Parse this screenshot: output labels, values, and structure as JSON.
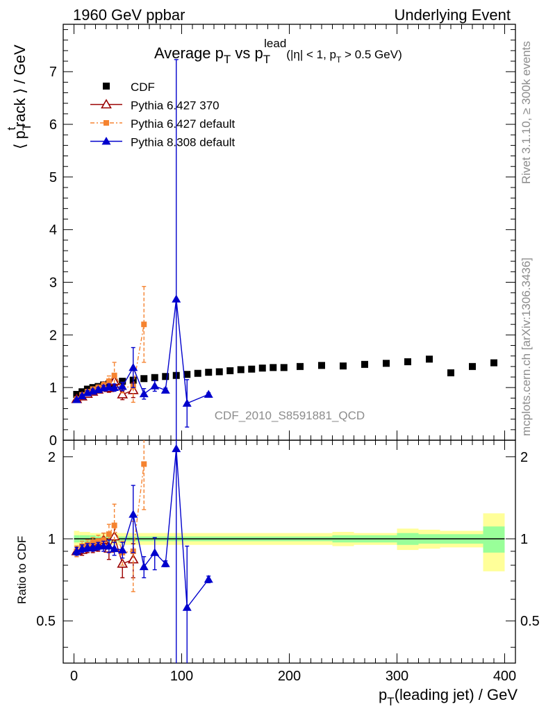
{
  "header": {
    "left": "1960 GeV ppbar",
    "right": "Underlying Event"
  },
  "side": {
    "rivet": "Rivet 3.1.10, ≥ 300k events",
    "mcplots": "mcplots.cern.ch [arXiv:1306.3436]"
  },
  "analysis_id": "CDF_2010_S8591881_QCD",
  "chart_data": [
    {
      "type": "scatter",
      "title": "Average pT vs pT lead (|η| < 1, pT > 0.5 GeV)",
      "title_parts": {
        "a": "Average p",
        "a_sub": "T",
        "b": " vs p",
        "b_sub": "T",
        "b_sup": "lead",
        "c": "(|η| < 1, p",
        "c_sub": "T",
        "d": " > 0.5 GeV)"
      },
      "ylabel": "⟨ pT track ⟩ / GeV",
      "ylabel_parts": {
        "l": "⟨ p",
        "sub": "T",
        "sup": "t",
        "r": "rack ⟩ / GeV"
      },
      "xlim": [
        -10,
        410
      ],
      "ylim": [
        0,
        7.9
      ],
      "yticks": [
        "0",
        "1",
        "2",
        "3",
        "4",
        "5",
        "6",
        "7"
      ],
      "legend_position": "top-left",
      "series": [
        {
          "name": "CDF",
          "color": "#000000",
          "marker": "square-filled",
          "x": [
            2.5,
            7.5,
            12.5,
            17.5,
            22.5,
            27.5,
            32.5,
            37.5,
            45,
            55,
            65,
            75,
            85,
            95,
            105,
            115,
            125,
            135,
            145,
            155,
            165,
            175,
            185,
            195,
            210,
            230,
            250,
            270,
            290,
            310,
            330,
            350,
            370,
            390
          ],
          "y": [
            0.87,
            0.92,
            0.97,
            1.0,
            1.02,
            1.05,
            1.07,
            1.1,
            1.12,
            1.14,
            1.17,
            1.19,
            1.21,
            1.23,
            1.25,
            1.27,
            1.29,
            1.3,
            1.32,
            1.34,
            1.35,
            1.37,
            1.38,
            1.38,
            1.4,
            1.42,
            1.41,
            1.44,
            1.46,
            1.49,
            1.54,
            1.28,
            1.4,
            1.47
          ]
        },
        {
          "name": "Pythia 6.427 370",
          "color": "#9a0000",
          "marker": "triangle-open",
          "x": [
            2.5,
            7.5,
            12.5,
            17.5,
            22.5,
            27.5,
            32.5,
            37.5,
            45,
            55
          ],
          "y": [
            0.78,
            0.83,
            0.88,
            0.92,
            0.96,
            1.02,
            0.99,
            1.12,
            0.87,
            0.95
          ],
          "err": [
            0.03,
            0.03,
            0.04,
            0.04,
            0.05,
            0.06,
            0.08,
            0.1,
            0.1,
            0.14
          ]
        },
        {
          "name": "Pythia 6.427 default",
          "color": "#f58330",
          "marker": "square-filled",
          "x": [
            2.5,
            7.5,
            12.5,
            17.5,
            22.5,
            27.5,
            32.5,
            37.5,
            45,
            55,
            65
          ],
          "y": [
            0.78,
            0.86,
            0.92,
            0.97,
            1.0,
            1.04,
            1.12,
            1.23,
            1.0,
            1.02,
            2.2
          ],
          "err": [
            0.03,
            0.03,
            0.04,
            0.04,
            0.05,
            0.06,
            0.1,
            0.25,
            0.1,
            0.3,
            0.72
          ]
        },
        {
          "name": "Pythia 8.308 default",
          "color": "#0000cc",
          "marker": "triangle-filled",
          "x": [
            2.5,
            7.5,
            12.5,
            17.5,
            22.5,
            27.5,
            32.5,
            37.5,
            45,
            55,
            65,
            75,
            85,
            95,
            105,
            125
          ],
          "y": [
            0.77,
            0.84,
            0.9,
            0.93,
            0.96,
            0.99,
            1.01,
            1.0,
            1.02,
            1.38,
            0.88,
            1.03,
            0.95,
            2.68,
            0.7,
            0.87
          ],
          "err": [
            0.03,
            0.03,
            0.04,
            0.04,
            0.04,
            0.05,
            0.06,
            0.07,
            0.08,
            0.38,
            0.1,
            0.1,
            0.04,
            4.55,
            0.45,
            0.03
          ]
        }
      ]
    },
    {
      "type": "scatter",
      "title": "",
      "ylabel": "Ratio to CDF",
      "xlabel": "pT(leading jet) / GeV",
      "xlabel_parts": {
        "a": "p",
        "sub": "T",
        "b": "(leading jet) / GeV"
      },
      "xlim": [
        -10,
        410
      ],
      "ylim": [
        0.35,
        2.3
      ],
      "xticks": [
        "0",
        "100",
        "200",
        "300",
        "400"
      ],
      "yticks": [
        "0.5",
        "1",
        "2"
      ],
      "bands": {
        "x_edges": [
          0,
          5,
          10,
          15,
          20,
          25,
          30,
          35,
          40,
          50,
          60,
          70,
          80,
          90,
          100,
          110,
          120,
          130,
          140,
          150,
          160,
          170,
          180,
          190,
          200,
          220,
          240,
          260,
          280,
          300,
          320,
          340,
          360,
          380,
          400
        ],
        "yellow_halfwidth": [
          0.07,
          0.06,
          0.06,
          0.05,
          0.05,
          0.05,
          0.05,
          0.05,
          0.05,
          0.05,
          0.05,
          0.05,
          0.05,
          0.05,
          0.05,
          0.05,
          0.05,
          0.05,
          0.05,
          0.05,
          0.05,
          0.05,
          0.05,
          0.05,
          0.05,
          0.05,
          0.06,
          0.05,
          0.05,
          0.09,
          0.08,
          0.07,
          0.07,
          0.24
        ],
        "green_halfwidth": [
          0.03,
          0.03,
          0.03,
          0.03,
          0.02,
          0.02,
          0.02,
          0.02,
          0.02,
          0.02,
          0.02,
          0.02,
          0.02,
          0.02,
          0.02,
          0.02,
          0.02,
          0.02,
          0.02,
          0.02,
          0.02,
          0.02,
          0.02,
          0.02,
          0.02,
          0.02,
          0.03,
          0.03,
          0.03,
          0.05,
          0.04,
          0.04,
          0.04,
          0.11
        ]
      },
      "series": [
        {
          "name": "Pythia 6.427 370",
          "color": "#9a0000",
          "marker": "triangle-open",
          "x": [
            2.5,
            7.5,
            12.5,
            17.5,
            22.5,
            27.5,
            32.5,
            37.5,
            45,
            55
          ],
          "y": [
            0.9,
            0.91,
            0.93,
            0.93,
            0.95,
            0.99,
            0.92,
            1.02,
            0.81,
            0.84
          ],
          "err": [
            0.04,
            0.04,
            0.04,
            0.04,
            0.05,
            0.06,
            0.08,
            0.1,
            0.09,
            0.12
          ]
        },
        {
          "name": "Pythia 6.427 default",
          "color": "#f58330",
          "marker": "square-filled",
          "x": [
            2.5,
            7.5,
            12.5,
            17.5,
            22.5,
            27.5,
            32.5,
            37.5,
            45,
            55,
            65
          ],
          "y": [
            0.9,
            0.94,
            0.95,
            0.97,
            0.98,
            0.99,
            1.04,
            1.12,
            0.89,
            0.9,
            1.88
          ],
          "err": [
            0.04,
            0.04,
            0.04,
            0.04,
            0.05,
            0.06,
            0.09,
            0.22,
            0.09,
            0.26,
            0.6
          ]
        },
        {
          "name": "Pythia 8.308 default",
          "color": "#0000cc",
          "marker": "triangle-filled",
          "x": [
            2.5,
            7.5,
            12.5,
            17.5,
            22.5,
            27.5,
            32.5,
            37.5,
            45,
            55,
            65,
            75,
            85,
            95,
            105,
            125
          ],
          "y": [
            0.9,
            0.92,
            0.93,
            0.93,
            0.94,
            0.94,
            0.94,
            0.92,
            0.91,
            1.23,
            0.79,
            0.89,
            0.81,
            2.14,
            0.56,
            0.71
          ],
          "err": [
            0.03,
            0.03,
            0.03,
            0.03,
            0.03,
            0.04,
            0.05,
            0.05,
            0.06,
            0.34,
            0.07,
            0.12,
            0.02,
            2.2,
            0.38,
            0.02
          ]
        }
      ]
    }
  ]
}
